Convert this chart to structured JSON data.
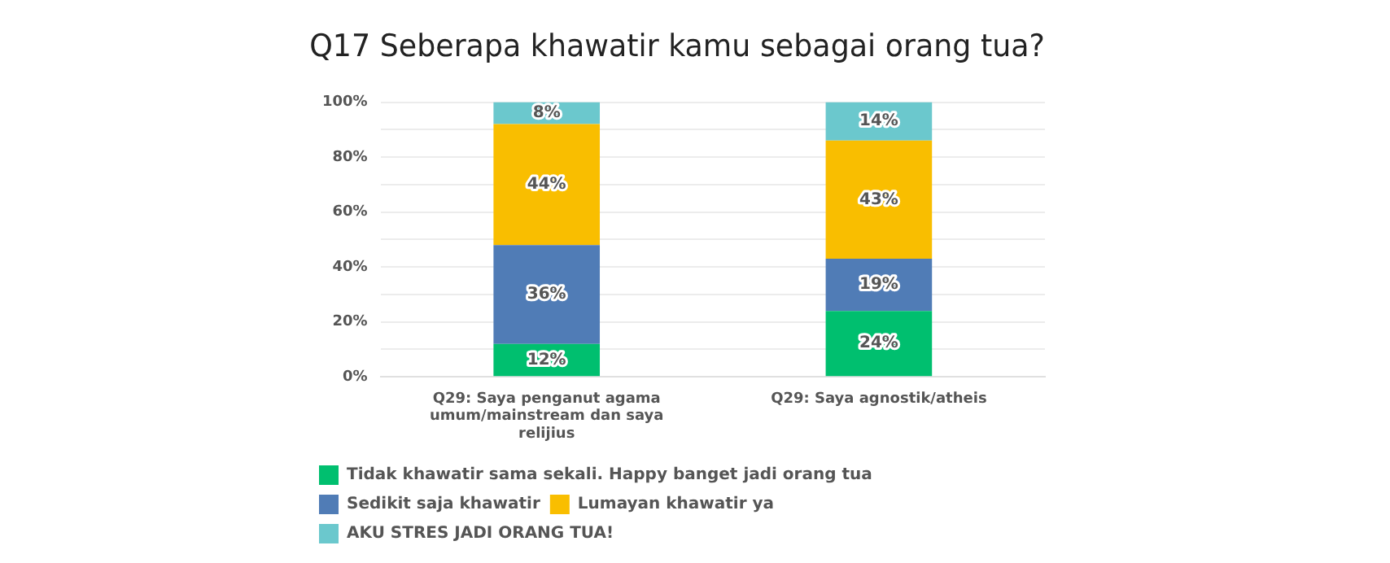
{
  "chart_data": {
    "type": "bar",
    "title": "Q17 Seberapa khawatir kamu sebagai orang tua?",
    "categories": [
      "Q29: Saya penganut agama umum/mainstream dan saya relijius",
      "Q29: Saya agnostik/atheis"
    ],
    "stacked": true,
    "series": [
      {
        "name": "Tidak khawatir sama sekali. Happy banget jadi orang tua",
        "color": "#00bf6f",
        "values": [
          12,
          24
        ],
        "value_labels": [
          "12%",
          "24%"
        ]
      },
      {
        "name": "Sedikit saja khawatir",
        "color": "#507cb6",
        "values": [
          36,
          19
        ],
        "value_labels": [
          "36%",
          "19%"
        ]
      },
      {
        "name": "Lumayan khawatir ya",
        "color": "#f9be00",
        "values": [
          44,
          43
        ],
        "value_labels": [
          "44%",
          "43%"
        ]
      },
      {
        "name": "AKU STRES JADI ORANG TUA!",
        "color": "#6bc8cd",
        "values": [
          8,
          14
        ],
        "value_labels": [
          "8%",
          "14%"
        ]
      }
    ],
    "ylim": [
      0,
      100
    ],
    "yticks": [
      {
        "value": 0,
        "label": "0%"
      },
      {
        "value": 10,
        "label": null
      },
      {
        "value": 20,
        "label": "20%"
      },
      {
        "value": 30,
        "label": null
      },
      {
        "value": 40,
        "label": "40%"
      },
      {
        "value": 50,
        "label": null
      },
      {
        "value": 60,
        "label": "60%"
      },
      {
        "value": 70,
        "label": null
      },
      {
        "value": 80,
        "label": "80%"
      },
      {
        "value": 90,
        "label": null
      },
      {
        "value": 100,
        "label": "100%"
      }
    ],
    "grid": "y",
    "legend": "bottom"
  }
}
